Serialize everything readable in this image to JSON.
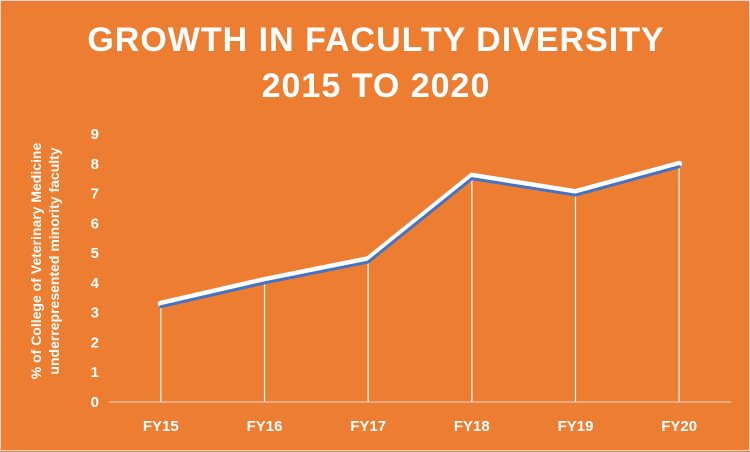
{
  "chart_data": {
    "type": "line",
    "title_lines": [
      "GROWTH IN FACULTY DIVERSITY",
      "2015 TO 2020"
    ],
    "ylabel_lines": [
      "% of College of Veterinary Medicine",
      "underrepresented minority faculty"
    ],
    "categories": [
      "FY15",
      "FY16",
      "FY17",
      "FY18",
      "FY19",
      "FY20"
    ],
    "values": [
      3.2,
      4.0,
      4.7,
      7.5,
      6.95,
      7.9
    ],
    "ylim": [
      0,
      9
    ],
    "yticks": [
      0,
      1,
      2,
      3,
      4,
      5,
      6,
      7,
      8,
      9
    ],
    "legend": "none",
    "grid": false,
    "drop_lines": true,
    "colors": {
      "background": "#ED7D31",
      "line": "#4472C4",
      "line_glow": "#FFFFFF",
      "text": "#FFFFFF",
      "axis": "#D9D9D9"
    }
  }
}
